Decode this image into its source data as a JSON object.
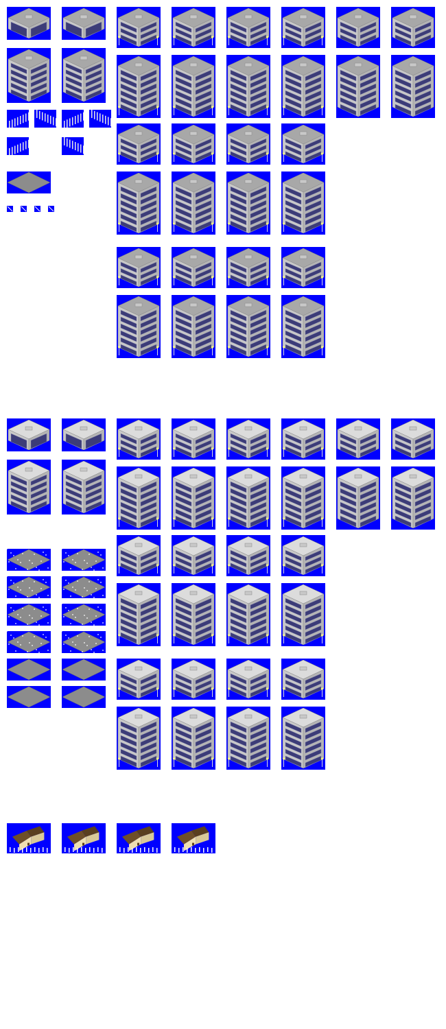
{
  "palette": {
    "sprite_background": "#0000ff",
    "page_background": "#ffffff",
    "summer_roof": "#a8a8a8",
    "winter_roof": "#dcdcdc",
    "window": "#3c3c78",
    "window_light": "#8c8cb4",
    "wall": "#c8c8c8",
    "house_roof": "#6e4f28",
    "house_wall": "#f0e0b0"
  },
  "sections": [
    {
      "id": "summer",
      "theme": "summer"
    },
    {
      "id": "winter",
      "theme": "winter"
    },
    {
      "id": "houses",
      "theme": "house"
    }
  ]
}
